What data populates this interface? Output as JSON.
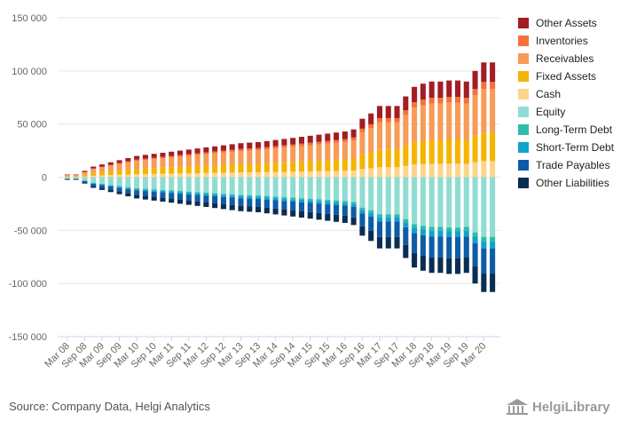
{
  "source_text": "Source: Company Data, Helgi Analytics",
  "brand": {
    "name": "HelgiLibrary",
    "icon": "library-building-icon"
  },
  "legend": [
    {
      "label": "Other Assets",
      "color": "#a31d24"
    },
    {
      "label": "Inventories",
      "color": "#f5703a"
    },
    {
      "label": "Receivables",
      "color": "#f79b57"
    },
    {
      "label": "Fixed Assets",
      "color": "#f5b400"
    },
    {
      "label": "Cash",
      "color": "#fcd58c"
    },
    {
      "label": "Equity",
      "color": "#8fdcd3"
    },
    {
      "label": "Long-Term Debt",
      "color": "#2ebdaa"
    },
    {
      "label": "Short-Term Debt",
      "color": "#0fa2cf"
    },
    {
      "label": "Trade Payables",
      "color": "#0d5ca8"
    },
    {
      "label": "Other Liabilities",
      "color": "#0a2d52"
    }
  ],
  "chart_data": {
    "type": "bar",
    "stacked": true,
    "title": "",
    "xlabel": "",
    "ylabel": "",
    "ylim": [
      -150000,
      150000
    ],
    "yticks": [
      150000,
      100000,
      50000,
      0,
      -50000,
      -100000,
      -150000
    ],
    "ytick_labels": [
      "150 000",
      "100 000",
      "50 000",
      "0",
      "-50 000",
      "-100 000",
      "-150 000"
    ],
    "x_tick_labels": [
      "Mar 08",
      "Sep 08",
      "Mar 09",
      "Sep 09",
      "Mar 10",
      "Sep 10",
      "Mar 11",
      "Sep 11",
      "Mar 12",
      "Sep 12",
      "Mar 13",
      "Sep 13",
      "Mar 14",
      "Sep 14",
      "Mar 15",
      "Sep 15",
      "Mar 16",
      "Sep 16",
      "Mar 17",
      "Sep 17",
      "Mar 18",
      "Sep 18",
      "Mar 19",
      "Sep 19",
      "Mar 20"
    ],
    "grid": true,
    "legend_position": "right",
    "categories": [
      "Mar 08",
      "Jun 08",
      "Sep 08",
      "Dec 08",
      "Mar 09",
      "Jun 09",
      "Sep 09",
      "Dec 09",
      "Mar 10",
      "Jun 10",
      "Sep 10",
      "Dec 10",
      "Mar 11",
      "Jun 11",
      "Sep 11",
      "Dec 11",
      "Mar 12",
      "Jun 12",
      "Sep 12",
      "Dec 12",
      "Mar 13",
      "Jun 13",
      "Sep 13",
      "Dec 13",
      "Mar 14",
      "Jun 14",
      "Sep 14",
      "Dec 14",
      "Mar 15",
      "Jun 15",
      "Sep 15",
      "Dec 15",
      "Mar 16",
      "Jun 16",
      "Sep 16",
      "Dec 16",
      "Mar 17",
      "Jun 17",
      "Sep 17",
      "Dec 17",
      "Mar 18",
      "Jun 18",
      "Sep 18",
      "Dec 18",
      "Mar 19",
      "Jun 19",
      "Sep 19",
      "Dec 19",
      "Mar 20",
      "Jun 20"
    ],
    "asset_totals": [
      2500,
      2500,
      6000,
      10000,
      12000,
      14000,
      16000,
      18000,
      20000,
      21000,
      22000,
      23000,
      24000,
      25000,
      26000,
      27000,
      28000,
      29000,
      30000,
      31000,
      32000,
      32500,
      33000,
      34000,
      35000,
      36000,
      37000,
      38000,
      39000,
      40000,
      41000,
      42000,
      43000,
      45000,
      55000,
      60000,
      67000,
      67000,
      67000,
      76000,
      85000,
      88000,
      90000,
      90000,
      91000,
      91000,
      90000,
      100000,
      108000,
      108000
    ],
    "liability_totals": [
      -2500,
      -2500,
      -6000,
      -10000,
      -12000,
      -14000,
      -16000,
      -18000,
      -20000,
      -21000,
      -22000,
      -23000,
      -24000,
      -25000,
      -26000,
      -27000,
      -28000,
      -29000,
      -30000,
      -31000,
      -32000,
      -32500,
      -33000,
      -34000,
      -35000,
      -36000,
      -37000,
      -38000,
      -39000,
      -40000,
      -41000,
      -42000,
      -43000,
      -45000,
      -55000,
      -60000,
      -67000,
      -67000,
      -67000,
      -76000,
      -85000,
      -88000,
      -90000,
      -90000,
      -91000,
      -91000,
      -90000,
      -100000,
      -108000,
      -108000
    ],
    "assets_series": [
      "Cash",
      "Fixed Assets",
      "Receivables",
      "Inventories",
      "Other Assets"
    ],
    "liabilities_series": [
      "Equity",
      "Long-Term Debt",
      "Short-Term Debt",
      "Trade Payables",
      "Other Liabilities"
    ],
    "asset_shares": [
      0.14,
      0.25,
      0.38,
      0.06,
      0.17
    ],
    "liability_shares": [
      0.52,
      0.04,
      0.06,
      0.22,
      0.16
    ]
  }
}
